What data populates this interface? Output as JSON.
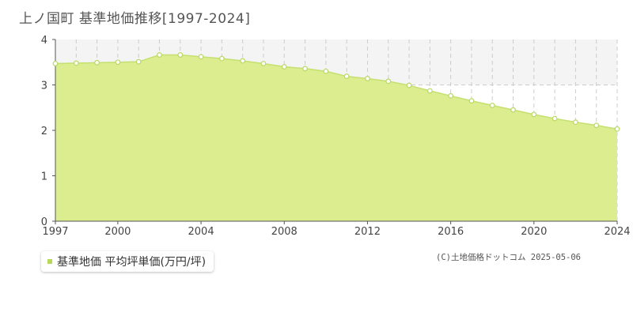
{
  "page_title": "上ノ国町 基準地価推移[1997-2024]",
  "legend_label": "基準地価 平均坪単価(万円/坪)",
  "copyright": "(C)土地価格ドットコム 2025-05-06",
  "colors": {
    "fill": "#dbed8f",
    "line": "#c5e070",
    "point_stroke": "#b9d863",
    "band": "#f4f4f4",
    "grid": "#cccccc",
    "axis": "#555555"
  },
  "chart_data": {
    "type": "area",
    "title": "上ノ国町 基準地価推移[1997-2024]",
    "xlabel": "",
    "ylabel": "",
    "xlim": [
      1997,
      2024
    ],
    "ylim": [
      0,
      4
    ],
    "x_ticks": [
      "1997",
      "2000",
      "2004",
      "2008",
      "2012",
      "2016",
      "2020",
      "2024"
    ],
    "y_ticks": [
      "0",
      "1",
      "2",
      "3",
      "4"
    ],
    "grid": true,
    "shaded_band": [
      3,
      4
    ],
    "series": [
      {
        "name": "基準地価 平均坪単価(万円/坪)",
        "x": [
          1997,
          1998,
          1999,
          2000,
          2001,
          2002,
          2003,
          2004,
          2005,
          2006,
          2007,
          2008,
          2009,
          2010,
          2011,
          2012,
          2013,
          2014,
          2015,
          2016,
          2017,
          2018,
          2019,
          2020,
          2021,
          2022,
          2023,
          2024
        ],
        "values": [
          3.47,
          3.48,
          3.49,
          3.5,
          3.51,
          3.66,
          3.66,
          3.62,
          3.58,
          3.53,
          3.47,
          3.4,
          3.36,
          3.3,
          3.19,
          3.14,
          3.08,
          2.99,
          2.87,
          2.76,
          2.65,
          2.55,
          2.45,
          2.35,
          2.26,
          2.18,
          2.11,
          2.03
        ]
      }
    ]
  }
}
